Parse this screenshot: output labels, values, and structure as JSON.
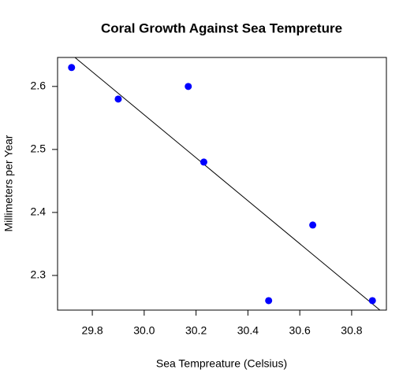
{
  "chart_data": {
    "type": "scatter",
    "title": "Coral Growth Against Sea Tempreture",
    "x_label": "Sea Tempreature (Celsius)",
    "y_label": "Millimeters per Year",
    "series": [
      {
        "color": "#0000ff",
        "x": [
          29.72,
          29.9,
          30.17,
          30.23,
          30.48,
          30.65,
          30.88
        ],
        "values": [
          2.63,
          2.58,
          2.6,
          2.48,
          2.26,
          2.38,
          2.26
        ]
      }
    ],
    "trend_line": {
      "color": "#000000",
      "x": [
        29.733,
        30.909
      ],
      "values": [
        2.646,
        2.245
      ]
    },
    "xlim": [
      29.666,
      30.934
    ],
    "xticks": [
      29.8,
      {
        "value": 30.0,
        "label": "30.0"
      },
      30.2,
      30.4,
      30.6,
      30.8
    ],
    "ylim": [
      2.245,
      2.646
    ],
    "yticks": [
      2.3,
      2.4,
      2.5,
      2.6
    ],
    "grid": false
  }
}
